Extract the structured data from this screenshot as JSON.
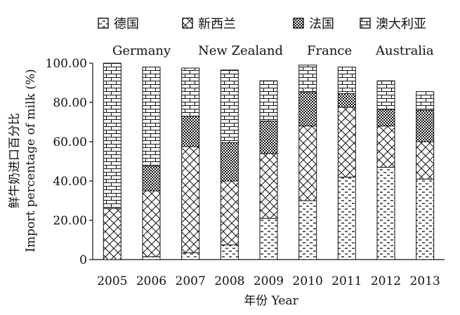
{
  "chart_data": {
    "type": "bar",
    "stacked": true,
    "categories": [
      "2005",
      "2006",
      "2007",
      "2008",
      "2009",
      "2010",
      "2011",
      "2012",
      "2013"
    ],
    "series": [
      {
        "name": "德国",
        "name_en": "Germany",
        "pattern": "dashes",
        "values": [
          0.0,
          1.5,
          3.5,
          7.5,
          21.0,
          30.0,
          42.0,
          47.0,
          41.0
        ]
      },
      {
        "name": "新西兰",
        "name_en": "New Zealand",
        "pattern": "crosshatch",
        "values": [
          26.0,
          33.5,
          54.0,
          32.5,
          33.0,
          38.0,
          35.5,
          21.0,
          19.0
        ]
      },
      {
        "name": "法国",
        "name_en": "France",
        "pattern": "dots",
        "values": [
          0.0,
          12.5,
          15.5,
          19.5,
          16.5,
          17.0,
          7.0,
          8.5,
          16.0
        ]
      },
      {
        "name": "澳大利亚",
        "name_en": "Australia",
        "pattern": "bricks",
        "values": [
          74.0,
          50.5,
          24.5,
          37.0,
          20.5,
          14.0,
          13.5,
          14.5,
          9.5
        ]
      }
    ],
    "xlabel": "年份 Year",
    "ylabel_cn": "鲜牛奶进口百分比",
    "ylabel_en": "Import percentage of milk (%)",
    "yticks": [
      "0",
      "20.00",
      "40.00",
      "60.00",
      "80.00",
      "100.00"
    ],
    "ylim": [
      0,
      100
    ],
    "legend_position": "top",
    "colors": {
      "ink": "#111111",
      "bar_fill": "#ffffff"
    }
  }
}
